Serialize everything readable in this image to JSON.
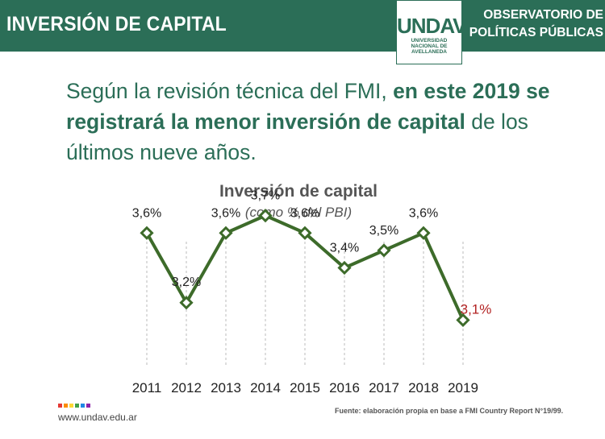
{
  "header": {
    "title": "INVERSIÓN DE CAPITAL",
    "org_line1": "OBSERVATORIO DE",
    "org_line2": "POLÍTICAS PÚBLICAS",
    "logo": {
      "mark": "UNDAV",
      "line1": "UNIVERSIDAD",
      "line2": "NACIONAL DE",
      "line3": "AVELLANEDA"
    }
  },
  "headline": {
    "part1": "Según la revisión técnica del FMI, ",
    "part2_bold": "en este 2019 se registrará la menor inversión de capital",
    "part3": " de los últimos nueve años."
  },
  "chart_data": {
    "type": "line",
    "title": "Inversión de capital",
    "subtitle": "(como % del PBI)",
    "categories": [
      "2011",
      "2012",
      "2013",
      "2014",
      "2015",
      "2016",
      "2017",
      "2018",
      "2019"
    ],
    "values": [
      3.6,
      3.2,
      3.6,
      3.7,
      3.6,
      3.4,
      3.5,
      3.6,
      3.1
    ],
    "data_labels": [
      "3,6%",
      "3,2%",
      "3,6%",
      "3,7%",
      "3,6%",
      "3,4%",
      "3,5%",
      "3,6%",
      "3,1%"
    ],
    "highlight_index": 8,
    "ylim": [
      3.0,
      3.8
    ],
    "grid": "vertical-dashed",
    "colors": {
      "line": "#3d6b2a",
      "marker_fill": "#ffffff",
      "label": "#222222",
      "highlight_label": "#b22222",
      "grid": "#bbbbbb"
    }
  },
  "footer": {
    "url": "www.undav.edu.ar",
    "source": "Fuente: elaboración propia en base a FMI Country Report N°19/99.",
    "dot_colors": [
      "#e53935",
      "#fb8c00",
      "#fdd835",
      "#43a047",
      "#1e88e5",
      "#8e24aa"
    ]
  },
  "colors": {
    "brand_green": "#2b6e57"
  }
}
